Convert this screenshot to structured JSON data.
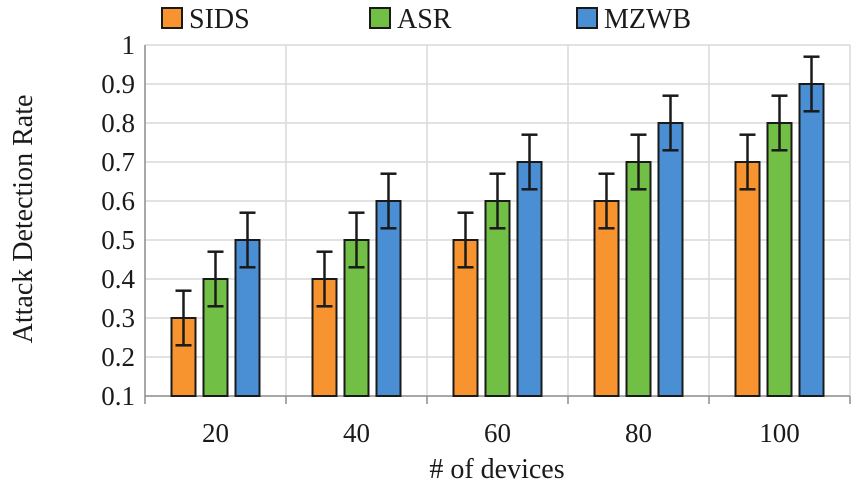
{
  "chart_data": {
    "type": "bar",
    "title": "",
    "xlabel": "# of devices",
    "ylabel": "Attack Detection Rate",
    "categories": [
      "20",
      "40",
      "60",
      "80",
      "100"
    ],
    "ylim": [
      0.1,
      1
    ],
    "yticks": [
      "0.1",
      "0.2",
      "0.3",
      "0.4",
      "0.5",
      "0.6",
      "0.7",
      "0.8",
      "0.9",
      "1"
    ],
    "grid": true,
    "legend_position": "top",
    "error_bars": true,
    "series": [
      {
        "name": "SIDS",
        "color": "#f7942f",
        "values": [
          0.3,
          0.4,
          0.5,
          0.6,
          0.7
        ],
        "errors": [
          0.07,
          0.07,
          0.07,
          0.07,
          0.07
        ]
      },
      {
        "name": "ASR",
        "color": "#71bf44",
        "values": [
          0.4,
          0.5,
          0.6,
          0.7,
          0.8
        ],
        "errors": [
          0.07,
          0.07,
          0.07,
          0.07,
          0.07
        ]
      },
      {
        "name": "MZWB",
        "color": "#4a8fd4",
        "values": [
          0.5,
          0.6,
          0.7,
          0.8,
          0.9
        ],
        "errors": [
          0.07,
          0.07,
          0.07,
          0.07,
          0.07
        ]
      }
    ]
  }
}
